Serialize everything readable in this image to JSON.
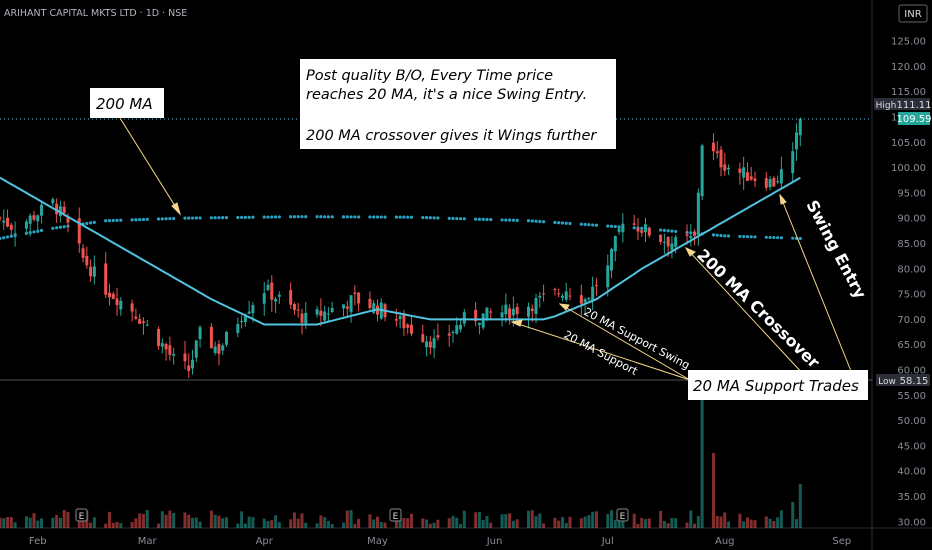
{
  "header": {
    "symbol": "ARIHANT CAPITAL MKTS LTD · 1D · NSE",
    "currency": "INR"
  },
  "badges": {
    "high_label": "High",
    "high_value": "111.11",
    "last_value": "109.59",
    "low_label": "Low",
    "low_value": "58.15"
  },
  "annotations": {
    "main_line1": "Post quality B/O, Every Time price",
    "main_line2": "reaches 20 MA, it's a nice Swing Entry.",
    "main_line3": "200 MA crossover gives it Wings further",
    "ma200_box": "200 MA",
    "support_trades_box": "20 MA Support Trades",
    "support_swing_label": "20 MA Support Swing",
    "support_label": "20 MA Support",
    "crossover_label": "200 MA Crossover",
    "swing_entry_label": "Swing Entry"
  },
  "events": [
    "E",
    "E",
    "E"
  ],
  "colors": {
    "up": "#26a69a",
    "down": "#ef5350",
    "ma20": "#4fc3e0",
    "ma200": "#2aa1c0",
    "note": "#f5d68a"
  },
  "chart_data": {
    "type": "candlestick",
    "title": "ARIHANT CAPITAL MKTS LTD · 1D · NSE",
    "x_ticks": [
      "Feb",
      "Mar",
      "Apr",
      "May",
      "Jun",
      "Jul",
      "Aug",
      "Sep"
    ],
    "y_ticks": [
      30,
      35,
      40,
      45,
      50,
      55,
      60,
      65,
      70,
      75,
      80,
      85,
      90,
      95,
      100,
      105,
      110,
      115,
      120,
      125
    ],
    "ylim": [
      30,
      128
    ],
    "period_high": 111.11,
    "period_low": 58.15,
    "last_close": 109.59,
    "close_path": [
      [
        "2024-01-22",
        90
      ],
      [
        "2024-01-26",
        88
      ],
      [
        "2024-02-01",
        91
      ],
      [
        "2024-02-05",
        93
      ],
      [
        "2024-02-08",
        90
      ],
      [
        "2024-02-13",
        82
      ],
      [
        "2024-02-19",
        76
      ],
      [
        "2024-02-26",
        72
      ],
      [
        "2024-03-04",
        66
      ],
      [
        "2024-03-08",
        62
      ],
      [
        "2024-03-12",
        60
      ],
      [
        "2024-03-15",
        67
      ],
      [
        "2024-03-20",
        64
      ],
      [
        "2024-03-26",
        71
      ],
      [
        "2024-04-01",
        76
      ],
      [
        "2024-04-05",
        74
      ],
      [
        "2024-04-12",
        70
      ],
      [
        "2024-04-19",
        72
      ],
      [
        "2024-04-25",
        74
      ],
      [
        "2024-05-02",
        72
      ],
      [
        "2024-05-10",
        68
      ],
      [
        "2024-05-17",
        65
      ],
      [
        "2024-05-24",
        70
      ],
      [
        "2024-05-31",
        71
      ],
      [
        "2024-06-07",
        72
      ],
      [
        "2024-06-14",
        74
      ],
      [
        "2024-06-20",
        76
      ],
      [
        "2024-06-25",
        74
      ],
      [
        "2024-07-01",
        80
      ],
      [
        "2024-07-05",
        90
      ],
      [
        "2024-07-10",
        88
      ],
      [
        "2024-07-15",
        86
      ],
      [
        "2024-07-19",
        85
      ],
      [
        "2024-07-24",
        86
      ],
      [
        "2024-07-26",
        105
      ],
      [
        "2024-07-31",
        101
      ],
      [
        "2024-08-05",
        99
      ],
      [
        "2024-08-09",
        98
      ],
      [
        "2024-08-14",
        97
      ],
      [
        "2024-08-19",
        102
      ],
      [
        "2024-08-21",
        109.59
      ]
    ],
    "series": [
      {
        "name": "20 MA",
        "values": [
          [
            "2024-01-22",
            98
          ],
          [
            "2024-02-05",
            92
          ],
          [
            "2024-02-19",
            86
          ],
          [
            "2024-03-04",
            80
          ],
          [
            "2024-03-18",
            74
          ],
          [
            "2024-04-01",
            69
          ],
          [
            "2024-04-15",
            69
          ],
          [
            "2024-05-01",
            72
          ],
          [
            "2024-05-15",
            70
          ],
          [
            "2024-06-01",
            70
          ],
          [
            "2024-06-15",
            70
          ],
          [
            "2024-06-28",
            74
          ],
          [
            "2024-07-10",
            80
          ],
          [
            "2024-07-24",
            86
          ],
          [
            "2024-08-07",
            92
          ],
          [
            "2024-08-21",
            98
          ]
        ]
      },
      {
        "name": "200 MA",
        "values": [
          [
            "2024-01-22",
            86
          ],
          [
            "2024-02-05",
            88
          ],
          [
            "2024-02-19",
            89.5
          ],
          [
            "2024-03-10",
            90
          ],
          [
            "2024-04-10",
            90.3
          ],
          [
            "2024-05-10",
            90.2
          ],
          [
            "2024-06-10",
            89.5
          ],
          [
            "2024-07-10",
            88
          ],
          [
            "2024-08-01",
            86.5
          ],
          [
            "2024-08-21",
            86
          ]
        ]
      }
    ],
    "volume": {
      "note": "volume bars shown at the bottom; largest spike on 2024-07-26"
    }
  }
}
